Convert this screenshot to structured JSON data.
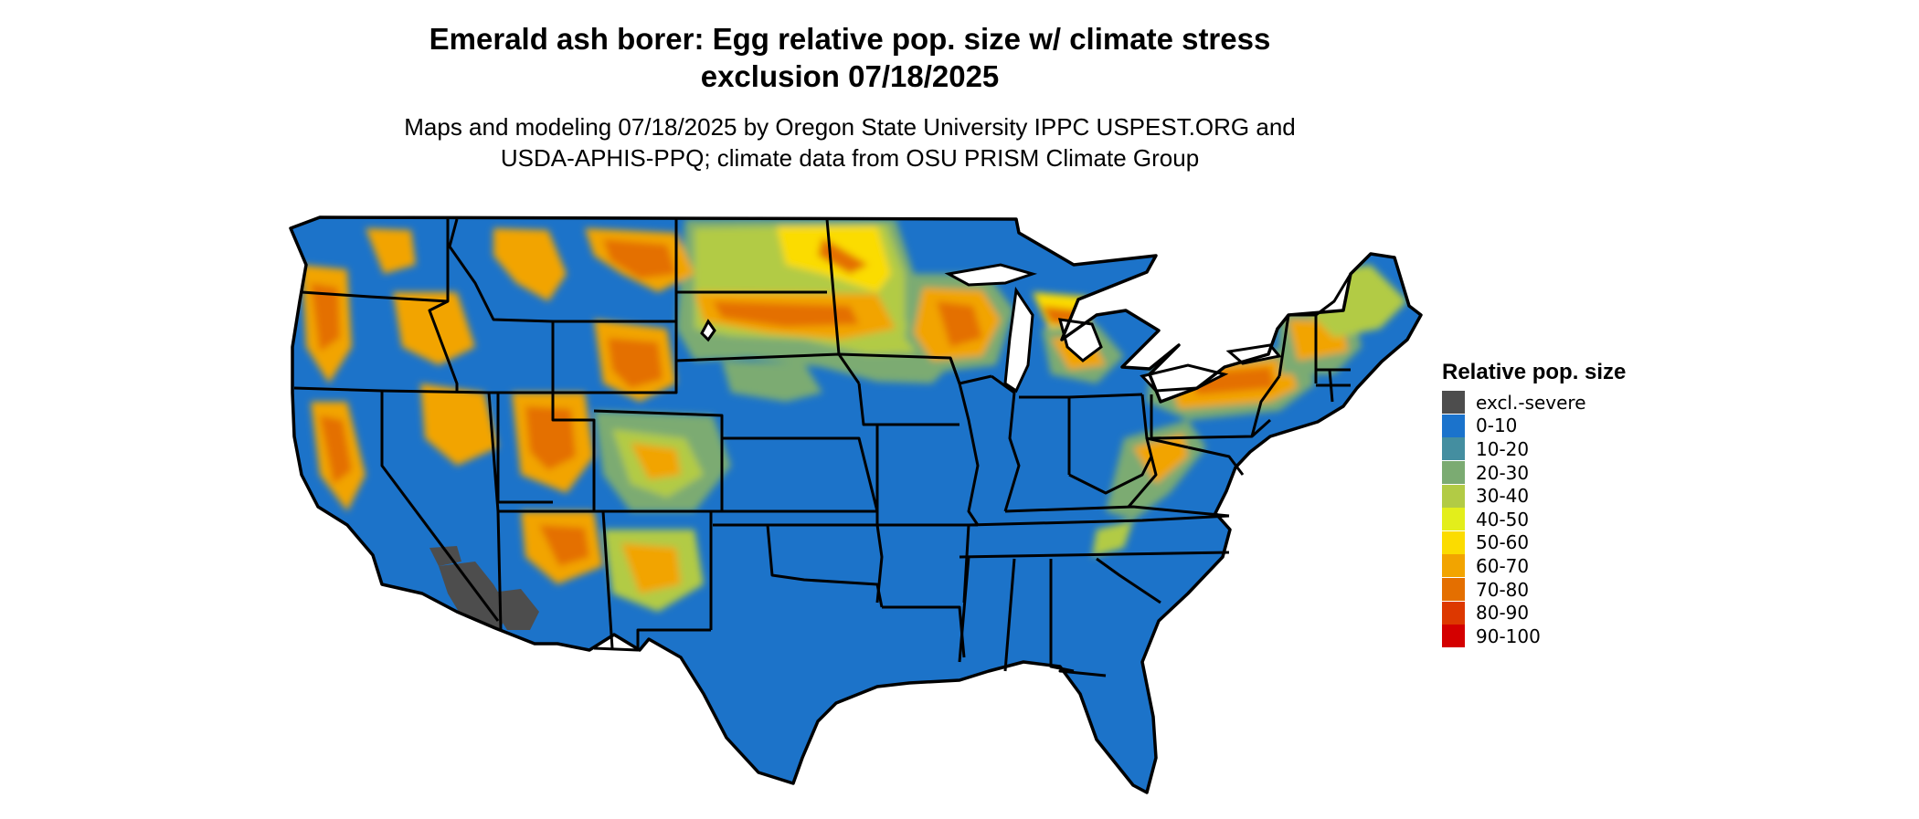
{
  "title": {
    "line1": "Emerald ash borer: Egg relative pop. size w/ climate stress",
    "line2": "exclusion 07/18/2025"
  },
  "subtitle": {
    "line1": "Maps and modeling 07/18/2025 by Oregon State University IPPC USPEST.ORG and",
    "line2": "USDA-APHIS-PPQ; climate data from OSU PRISM Climate Group"
  },
  "map": {
    "region": "Contiguous United States",
    "base_color": "#1c73c9",
    "border_color": "#000000"
  },
  "legend": {
    "title": "Relative pop. size",
    "items": [
      {
        "label": "excl.-severe",
        "color": "#4d4d4d"
      },
      {
        "label": "0-10",
        "color": "#1b73cc"
      },
      {
        "label": "10-20",
        "color": "#448ea0"
      },
      {
        "label": "20-30",
        "color": "#7bab72"
      },
      {
        "label": "30-40",
        "color": "#b2cb45"
      },
      {
        "label": "40-50",
        "color": "#e3ee1b"
      },
      {
        "label": "50-60",
        "color": "#fbdc00"
      },
      {
        "label": "60-70",
        "color": "#f2a400"
      },
      {
        "label": "70-80",
        "color": "#e46f00"
      },
      {
        "label": "80-90",
        "color": "#dd3800"
      },
      {
        "label": "90-100",
        "color": "#d40000"
      }
    ]
  }
}
